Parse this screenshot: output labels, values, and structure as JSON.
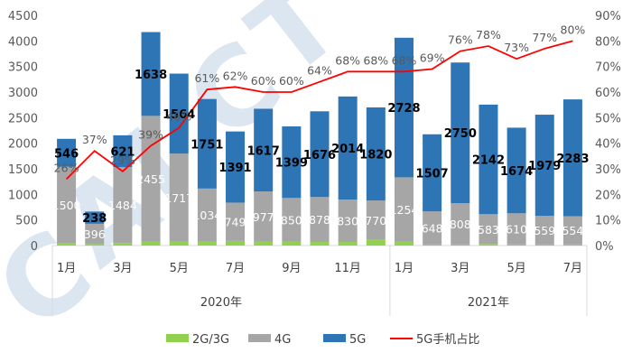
{
  "chart_data": {
    "type": "bar",
    "stacked": true,
    "groups": [
      "2020年",
      "2021年"
    ],
    "month_labels": [
      "1月",
      "",
      "3月",
      "",
      "5月",
      "",
      "7月",
      "",
      "9月",
      "",
      "11月",
      "",
      "1月",
      "",
      "3月",
      "",
      "5月",
      "",
      "7月"
    ],
    "series": [
      {
        "name": "2G/3G",
        "type": "bar",
        "values": [
          40,
          30,
          50,
          80,
          80,
          80,
          90,
          80,
          80,
          70,
          70,
          110,
          80,
          20,
          20,
          30,
          20,
          20,
          20
        ],
        "color": "#92d050"
      },
      {
        "name": "4G",
        "type": "bar",
        "values": [
          1500,
          396,
          1484,
          2455,
          1717,
          1034,
          749,
          977,
          850,
          878,
          830,
          770,
          1254,
          648,
          808,
          583,
          610,
          559,
          554
        ],
        "color": "#a6a6a6"
      },
      {
        "name": "5G",
        "type": "bar",
        "values": [
          546,
          238,
          621,
          1638,
          1564,
          1751,
          1391,
          1617,
          1399,
          1676,
          2014,
          1820,
          2728,
          1507,
          2750,
          2142,
          1674,
          1979,
          2283
        ],
        "color": "#2e75b6"
      },
      {
        "name": "5G手机占比",
        "type": "line",
        "axis": "right",
        "values": [
          26,
          37,
          29,
          39,
          46,
          61,
          62,
          60,
          60,
          64,
          68,
          68,
          68,
          69,
          76,
          78,
          73,
          77,
          80
        ],
        "color": "#ff0000"
      }
    ],
    "pct_labels": [
      "26%",
      "37%",
      "29%",
      "39%",
      "46%",
      "61%",
      "62%",
      "60%",
      "60%",
      "64%",
      "68%",
      "68%",
      "68%",
      "69%",
      "76%",
      "78%",
      "73%",
      "77%",
      "80%"
    ],
    "left_axis": {
      "min": 0,
      "max": 4500,
      "ticks": [
        "0",
        "500",
        "1000",
        "1500",
        "2000",
        "2500",
        "3000",
        "3500",
        "4000",
        "4500"
      ]
    },
    "right_axis": {
      "min": 0,
      "max": 90,
      "ticks": [
        "0%",
        "10%",
        "20%",
        "30%",
        "40%",
        "50%",
        "60%",
        "70%",
        "80%",
        "90%"
      ]
    },
    "legend": {
      "position": "bottom",
      "items": [
        "2G/3G",
        "4G",
        "5G",
        "5G手机占比"
      ]
    },
    "watermark": "CAICT"
  }
}
